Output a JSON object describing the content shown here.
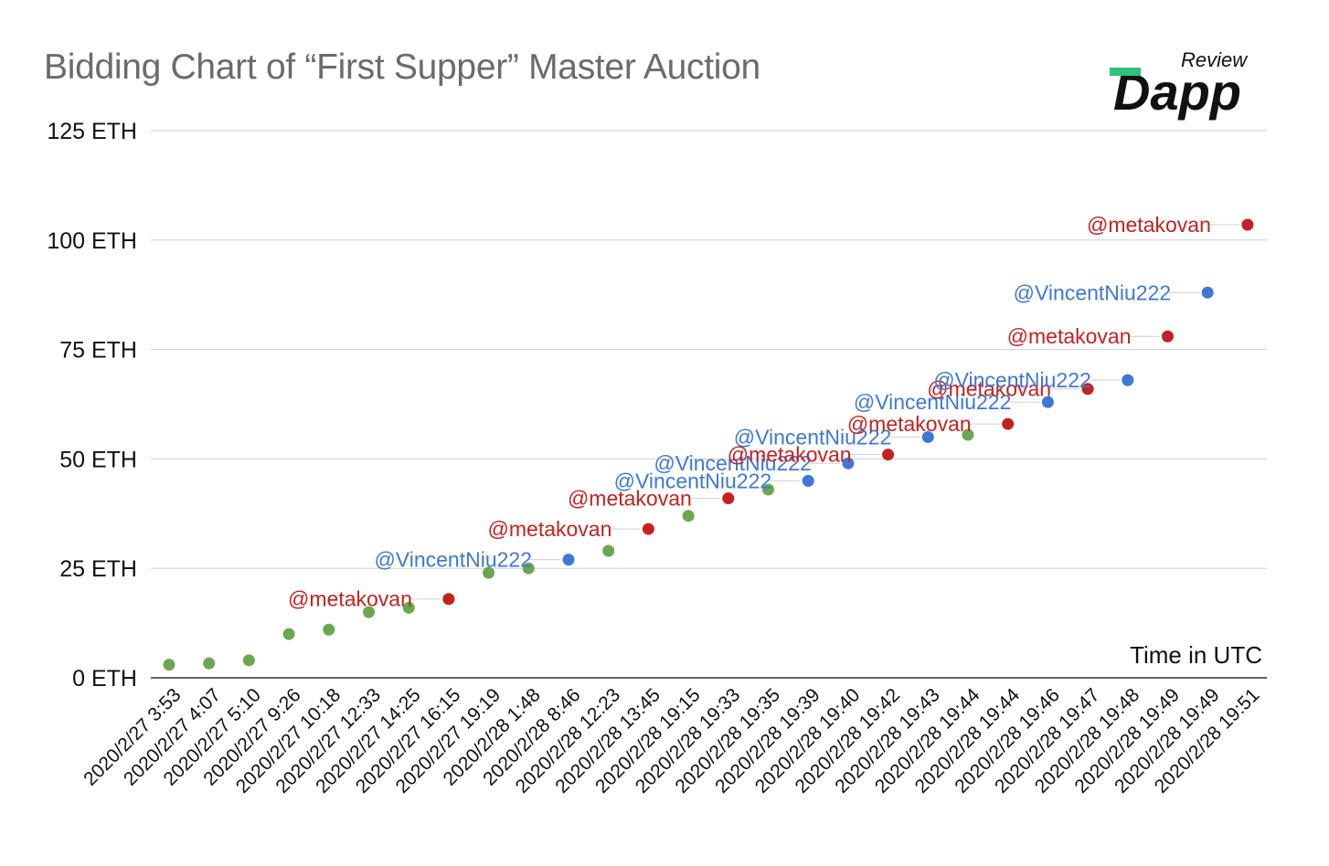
{
  "title": "Bidding Chart of “First Supper” Master Auction",
  "logo": {
    "brand": "Dapp",
    "sub": "Review"
  },
  "colors": {
    "metakovan": "#c5221f",
    "vincentniu": "#3d78d8",
    "other": "#6aa84f",
    "grid": "#d0d0d0",
    "axis": "#333333"
  },
  "chart_data": {
    "type": "scatter",
    "title": "Bidding Chart of “First Supper” Master Auction",
    "xlabel": "Time in UTC",
    "ylabel": "",
    "ylim": [
      0,
      125
    ],
    "y_ticks": [
      "0 ETH",
      "25 ETH",
      "50 ETH",
      "75 ETH",
      "100 ETH",
      "125 ETH"
    ],
    "grid": true,
    "categories": [
      "2020/2/27 3:53",
      "2020/2/27 4:07",
      "2020/2/27 5:10",
      "2020/2/27 9:26",
      "2020/2/27 10:18",
      "2020/2/27 12:33",
      "2020/2/27 14:25",
      "2020/2/27 16:15",
      "2020/2/27 19:19",
      "2020/2/28 1:48",
      "2020/2/28 8:46",
      "2020/2/28 12:23",
      "2020/2/28 13:45",
      "2020/2/28 19:15",
      "2020/2/28 19:33",
      "2020/2/28 19:35",
      "2020/2/28 19:39",
      "2020/2/28 19:40",
      "2020/2/28 19:42",
      "2020/2/28 19:43",
      "2020/2/28 19:44",
      "2020/2/28 19:44",
      "2020/2/28 19:46",
      "2020/2/28 19:47",
      "2020/2/28 19:48",
      "2020/2/28 19:49",
      "2020/2/28 19:49",
      "2020/2/28 19:51"
    ],
    "values": [
      3,
      3.3,
      4,
      10,
      11,
      15,
      16,
      18,
      24,
      25,
      27,
      29,
      34,
      37,
      41,
      43,
      45,
      49,
      51,
      55,
      55.5,
      58,
      63,
      66,
      68,
      78,
      88,
      103.5
    ],
    "bidders": [
      "",
      "",
      "",
      "",
      "",
      "",
      "",
      "@metakovan",
      "",
      "",
      "@VincentNiu222",
      "",
      "@metakovan",
      "",
      "@metakovan",
      "",
      "@VincentNiu222",
      "@VincentNiu222",
      "@metakovan",
      "@VincentNiu222",
      "",
      "@metakovan",
      "@VincentNiu222",
      "@metakovan",
      "@VincentNiu222",
      "@metakovan",
      "@VincentNiu222",
      "@metakovan"
    ]
  }
}
